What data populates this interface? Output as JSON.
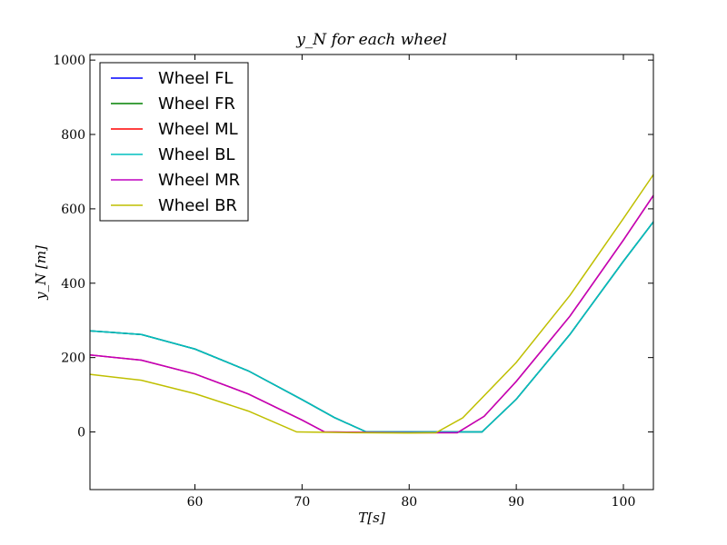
{
  "chart_data": {
    "type": "line",
    "title": "y_N for each wheel",
    "xlabel": "T[s]",
    "ylabel": "y_N [m]",
    "xlim": [
      50.2,
      102.8
    ],
    "ylim": [
      -155,
      1015
    ],
    "xticks": [
      60,
      70,
      80,
      90,
      100
    ],
    "yticks": [
      0,
      200,
      400,
      600,
      800,
      1000
    ],
    "grid": false,
    "legend_position": "top-left",
    "series": [
      {
        "name": "Wheel FL",
        "color": "#0000ff",
        "x": [
          50.2,
          55,
          60,
          65,
          70,
          73,
          76,
          80,
          84,
          86.8,
          90,
          95,
          100,
          102.8
        ],
        "y": [
          272,
          262,
          223,
          164,
          87,
          39,
          0,
          0,
          0,
          0,
          88,
          262,
          459,
          565
        ]
      },
      {
        "name": "Wheel FR",
        "color": "#008000",
        "x": [
          50.2,
          55,
          60,
          65,
          70,
          73,
          76,
          80,
          84,
          86.8,
          90,
          95,
          100,
          102.8
        ],
        "y": [
          272,
          262,
          223,
          164,
          87,
          39,
          0,
          0,
          0,
          0,
          88,
          262,
          459,
          565
        ]
      },
      {
        "name": "Wheel ML",
        "color": "#ff0000",
        "x": [
          50.2,
          55,
          60,
          65,
          70,
          72.1,
          76,
          80,
          84.5,
          87,
          90,
          95,
          100,
          102.8
        ],
        "y": [
          207,
          193,
          156,
          102,
          32,
          0,
          -1,
          -2,
          -2,
          42,
          136,
          311,
          516,
          636
        ]
      },
      {
        "name": "Wheel BL",
        "color": "#00bfbf",
        "x": [
          50.2,
          55,
          60,
          65,
          70,
          73,
          76,
          80,
          84,
          86.8,
          90,
          95,
          100,
          102.8
        ],
        "y": [
          272,
          262,
          223,
          164,
          87,
          39,
          0,
          0,
          0,
          0,
          88,
          262,
          459,
          565
        ]
      },
      {
        "name": "Wheel MR",
        "color": "#bf00bf",
        "x": [
          50.2,
          55,
          60,
          65,
          70,
          72.1,
          76,
          80,
          84.5,
          87,
          90,
          95,
          100,
          102.8
        ],
        "y": [
          207,
          193,
          156,
          102,
          32,
          0,
          -1,
          -2,
          -2,
          42,
          136,
          311,
          516,
          636
        ]
      },
      {
        "name": "Wheel BR",
        "color": "#bfbf00",
        "x": [
          50.2,
          55,
          60,
          65,
          69.5,
          75,
          80,
          82.5,
          85,
          90,
          95,
          100,
          102.8
        ],
        "y": [
          155,
          139,
          103,
          56,
          0,
          -2,
          -3,
          -2,
          38,
          187,
          367,
          574,
          692
        ]
      }
    ]
  }
}
